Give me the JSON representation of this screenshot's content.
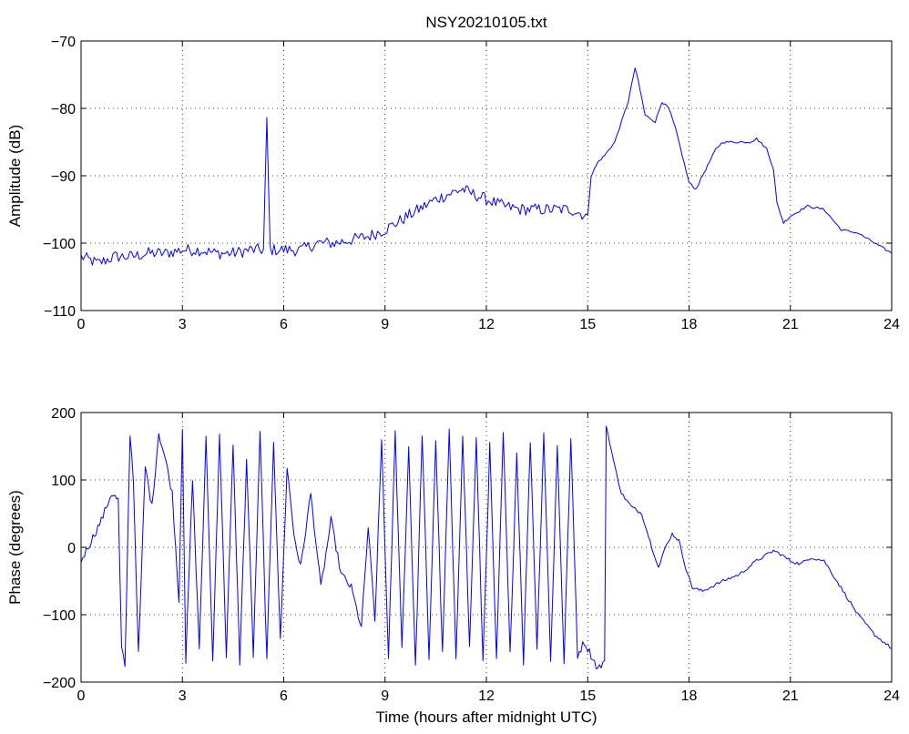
{
  "chart_data": [
    {
      "type": "line",
      "title": "NSY20210105.txt",
      "xlabel": "",
      "ylabel": "Amplitude (dB)",
      "xlim": [
        0,
        24
      ],
      "ylim": [
        -110,
        -70
      ],
      "x_ticks": [
        "0",
        "3",
        "6",
        "9",
        "12",
        "15",
        "18",
        "21",
        "24"
      ],
      "y_ticks": [
        "−70",
        "−80",
        "−90",
        "−100",
        "−110"
      ],
      "grid": true,
      "color": "#0000ff",
      "series": [
        {
          "x": [
            0,
            0.5,
            1,
            1.5,
            2,
            2.5,
            3,
            3.5,
            4,
            4.5,
            5,
            5.4,
            5.5,
            5.6,
            6,
            6.5,
            7,
            7.5,
            8,
            8.5,
            9,
            9.5,
            10,
            10.5,
            11,
            11.3,
            11.5,
            12,
            12.5,
            13,
            13.5,
            14,
            14.5,
            15,
            15.1,
            15.3,
            15.5,
            15.8,
            16,
            16.2,
            16.4,
            16.5,
            16.7,
            17,
            17.2,
            17.4,
            17.6,
            17.8,
            18,
            18.2,
            18.5,
            18.8,
            19,
            19.5,
            19.8,
            20,
            20.3,
            20.5,
            20.6,
            20.8,
            21,
            21.5,
            22,
            22.5,
            23,
            23.5,
            24
          ],
          "y": [
            -102,
            -103,
            -102,
            -102,
            -101.5,
            -101.5,
            -101,
            -101,
            -101.5,
            -101.5,
            -101,
            -101,
            -82,
            -101,
            -101,
            -101,
            -100,
            -100,
            -99.5,
            -99,
            -98,
            -96.5,
            -95,
            -93.5,
            -92.5,
            -92,
            -92.5,
            -93.5,
            -94.5,
            -95,
            -95,
            -95,
            -95,
            -96,
            -90,
            -88,
            -87,
            -85,
            -82,
            -79,
            -74,
            -76,
            -81,
            -82,
            -79,
            -80,
            -83,
            -87,
            -91,
            -92,
            -89,
            -86,
            -85,
            -85,
            -85,
            -84.5,
            -86,
            -89,
            -94,
            -97,
            -96,
            -94.5,
            -95,
            -98,
            -98.5,
            -100,
            -101.5
          ]
        }
      ]
    },
    {
      "type": "line",
      "title": "",
      "xlabel": "Time (hours after midnight UTC)",
      "ylabel": "Phase (degrees)",
      "xlim": [
        0,
        24
      ],
      "ylim": [
        -200,
        200
      ],
      "x_ticks": [
        "0",
        "3",
        "6",
        "9",
        "12",
        "15",
        "18",
        "21",
        "24"
      ],
      "y_ticks": [
        "200",
        "100",
        "0",
        "−100",
        "−200"
      ],
      "grid": true,
      "color": "#0000ff",
      "series": [
        {
          "x": [
            0,
            0.3,
            0.6,
            0.9,
            1.1,
            1.2,
            1.3,
            1.45,
            1.55,
            1.7,
            1.9,
            2.1,
            2.3,
            2.5,
            2.7,
            2.9,
            3.0,
            3.1,
            3.3,
            3.5,
            3.7,
            3.9,
            4.1,
            4.3,
            4.5,
            4.7,
            4.9,
            5.1,
            5.3,
            5.5,
            5.7,
            5.9,
            6.1,
            6.3,
            6.5,
            6.8,
            7.1,
            7.4,
            7.7,
            8.0,
            8.3,
            8.5,
            8.7,
            8.9,
            9.1,
            9.3,
            9.5,
            9.7,
            9.9,
            10.1,
            10.3,
            10.5,
            10.7,
            10.9,
            11.1,
            11.3,
            11.5,
            11.7,
            11.9,
            12.1,
            12.3,
            12.5,
            12.7,
            12.9,
            13.1,
            13.3,
            13.5,
            13.7,
            13.9,
            14.1,
            14.3,
            14.5,
            14.7,
            14.9,
            15.1,
            15.3,
            15.5,
            15.55,
            15.8,
            16.0,
            16.3,
            16.6,
            16.9,
            17.1,
            17.3,
            17.5,
            17.7,
            17.9,
            18.1,
            18.4,
            19.0,
            19.5,
            20.0,
            20.5,
            20.7,
            21.0,
            21.3,
            21.6,
            22.0,
            22.5,
            23.0,
            23.5,
            24.0
          ],
          "y": [
            -20,
            10,
            40,
            80,
            70,
            -150,
            -180,
            170,
            100,
            -160,
            120,
            60,
            170,
            130,
            80,
            -80,
            180,
            -170,
            100,
            -150,
            160,
            -170,
            170,
            -160,
            150,
            -170,
            130,
            -160,
            170,
            -170,
            160,
            -140,
            120,
            20,
            -30,
            80,
            -60,
            40,
            -40,
            -60,
            -120,
            30,
            -110,
            160,
            -170,
            170,
            -150,
            150,
            -180,
            170,
            -170,
            160,
            -160,
            175,
            -170,
            170,
            -150,
            160,
            -170,
            150,
            -170,
            170,
            -160,
            140,
            -170,
            160,
            -150,
            170,
            -170,
            150,
            -170,
            160,
            -160,
            -140,
            -160,
            -180,
            -170,
            180,
            120,
            80,
            60,
            50,
            0,
            -30,
            0,
            20,
            10,
            -30,
            -60,
            -65,
            -50,
            -40,
            -20,
            -5,
            -10,
            -20,
            -25,
            -15,
            -20,
            -60,
            -100,
            -130,
            -150
          ]
        }
      ]
    }
  ]
}
